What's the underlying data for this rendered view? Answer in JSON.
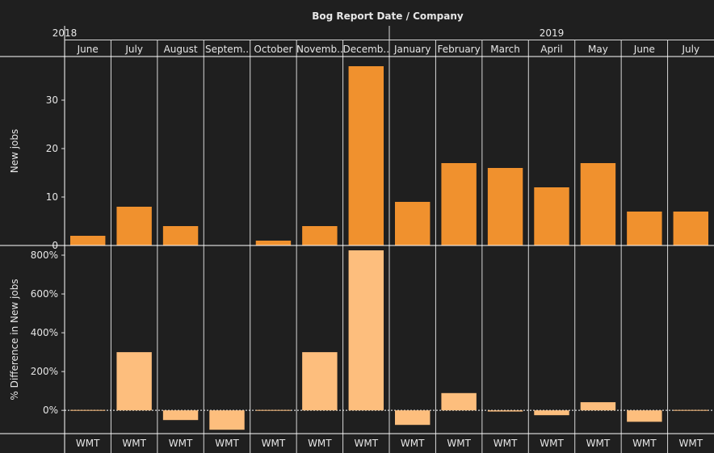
{
  "chart_data": {
    "type": "bar",
    "title": "Bog Report Date / Company",
    "years": [
      {
        "label": "2018",
        "span": [
          "June",
          "December"
        ]
      },
      {
        "label": "2019",
        "span": [
          "January",
          "July"
        ]
      }
    ],
    "categories": [
      "June",
      "July",
      "August",
      "Septem..",
      "October",
      "Novemb..",
      "Decemb..",
      "January",
      "February",
      "March",
      "April",
      "May",
      "June",
      "July"
    ],
    "company": "WMT",
    "panels": [
      {
        "name": "New jobs",
        "ylabel": "New jobs",
        "ylim": [
          0,
          39
        ],
        "ticks": [
          {
            "value": 0,
            "label": "0"
          },
          {
            "value": 10,
            "label": "10"
          },
          {
            "value": 20,
            "label": "20"
          },
          {
            "value": 30,
            "label": "30"
          }
        ],
        "values": [
          2,
          8,
          4,
          0,
          1,
          4,
          37,
          9,
          17,
          16,
          12,
          17,
          7,
          7
        ],
        "color": "#f0912e"
      },
      {
        "name": "% Difference in New jobs",
        "ylabel": "% Difference in New jobs",
        "ylim": [
          -120,
          850
        ],
        "ticks": [
          {
            "value": 0,
            "label": "0%"
          },
          {
            "value": 200,
            "label": "200%"
          },
          {
            "value": 400,
            "label": "400%"
          },
          {
            "value": 600,
            "label": "600%"
          },
          {
            "value": 800,
            "label": "800%"
          }
        ],
        "values": [
          0,
          300,
          -50,
          -100,
          0,
          300,
          825,
          -75,
          89,
          -6,
          -25,
          42,
          -59,
          0
        ],
        "color": "#fdbe7d"
      }
    ]
  }
}
